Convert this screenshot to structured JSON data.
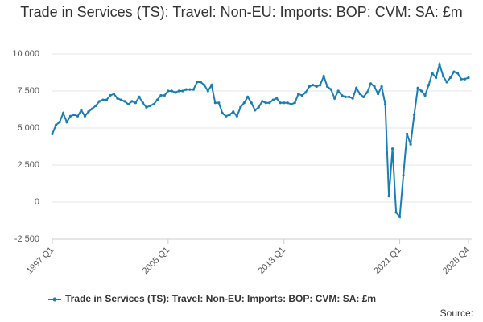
{
  "chart_data": {
    "type": "line",
    "title": "Trade in Services (TS): Travel: Non-EU: Imports: BOP: CVM: SA: £m",
    "source": "Source:",
    "categories": [
      "1997 Q1",
      null,
      null,
      null,
      null,
      null,
      null,
      null,
      null,
      null,
      null,
      null,
      null,
      null,
      null,
      null,
      null,
      null,
      null,
      null,
      null,
      null,
      null,
      null,
      null,
      null,
      null,
      null,
      null,
      null,
      null,
      null,
      "2005 Q1",
      null,
      null,
      null,
      null,
      null,
      null,
      null,
      null,
      null,
      null,
      null,
      null,
      null,
      null,
      null,
      null,
      null,
      null,
      null,
      null,
      null,
      null,
      null,
      null,
      null,
      null,
      null,
      null,
      null,
      null,
      null,
      "2013 Q1",
      null,
      null,
      null,
      null,
      null,
      null,
      null,
      null,
      null,
      null,
      null,
      null,
      null,
      null,
      null,
      null,
      null,
      null,
      null,
      null,
      null,
      null,
      null,
      null,
      null,
      null,
      null,
      null,
      null,
      null,
      null,
      "2021 Q1",
      null,
      null,
      null,
      null,
      null,
      null,
      null,
      null,
      null,
      null,
      null,
      null,
      null,
      null,
      null,
      null,
      null,
      null,
      "2025 Q4"
    ],
    "series": [
      {
        "name": "Trade in Services (TS): Travel: Non-EU: Imports: BOP: CVM: SA: £m",
        "color": "#1a7db6",
        "values": [
          4600,
          5200,
          5400,
          6000,
          5400,
          5800,
          5900,
          5800,
          6200,
          5800,
          6100,
          6300,
          6500,
          6800,
          6900,
          6900,
          7200,
          7300,
          7000,
          6900,
          6800,
          6600,
          6800,
          6700,
          7100,
          6700,
          6400,
          6500,
          6600,
          6900,
          7200,
          7200,
          7500,
          7500,
          7400,
          7500,
          7500,
          7600,
          7600,
          7600,
          8100,
          8100,
          7900,
          7500,
          7900,
          6700,
          6700,
          6000,
          5800,
          5900,
          6100,
          5800,
          6400,
          6700,
          7100,
          6700,
          6200,
          6400,
          6800,
          6700,
          6700,
          6900,
          7000,
          6700,
          6700,
          6700,
          6600,
          6700,
          7300,
          7200,
          7400,
          7800,
          7900,
          7800,
          7900,
          8500,
          7800,
          7600,
          7000,
          7500,
          7200,
          7100,
          7100,
          7000,
          7700,
          7300,
          7100,
          7400,
          8000,
          7800,
          7300,
          7800,
          6600,
          400,
          3600,
          -700,
          -1000,
          1800,
          4600,
          3900,
          5900,
          7700,
          7500,
          7200,
          7900,
          8700,
          8400,
          9300,
          8500,
          8100,
          8400,
          8800,
          8700,
          8300,
          8300,
          8400
        ]
      }
    ],
    "ylim": [
      -2500,
      10000
    ],
    "yticks": [
      {
        "value": -2500,
        "label": "-2 500"
      },
      0,
      {
        "value": 2500,
        "label": "2 500"
      },
      {
        "value": 5000,
        "label": "5 000"
      },
      {
        "value": 7500,
        "label": "7 500"
      },
      {
        "value": 10000,
        "label": "10 000"
      }
    ],
    "grid": true
  }
}
